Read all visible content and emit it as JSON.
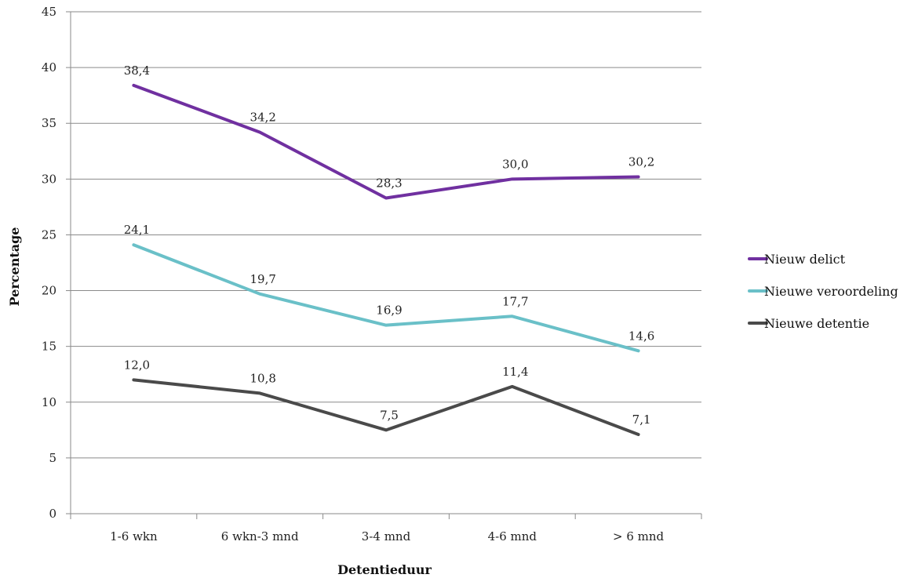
{
  "chart_data": {
    "type": "line",
    "categories": [
      "1-6 wkn",
      "6 wkn-3 mnd",
      "3-4 mnd",
      "4-6 mnd",
      "> 6 mnd"
    ],
    "series": [
      {
        "name": "Nieuw delict",
        "values": [
          38.4,
          34.2,
          28.3,
          30.0,
          30.2
        ],
        "labels": [
          "38,4",
          "34,2",
          "28,3",
          "30,0",
          "30,2"
        ],
        "color": "#7030a0"
      },
      {
        "name": "Nieuwe veroordeling",
        "values": [
          24.1,
          19.7,
          16.9,
          17.7,
          14.6
        ],
        "labels": [
          "24,1",
          "19,7",
          "16,9",
          "17,7",
          "14,6"
        ],
        "color": "#6ac0c8"
      },
      {
        "name": "Nieuwe detentie",
        "values": [
          12.0,
          10.8,
          7.5,
          11.4,
          7.1
        ],
        "labels": [
          "12,0",
          "10,8",
          "7,5",
          "11,4",
          "7,1"
        ],
        "color": "#4a4a4a"
      }
    ],
    "title": "",
    "xlabel": "Detentieduur",
    "ylabel": "Percentage",
    "ylim": [
      0,
      45
    ],
    "yticks": [
      0,
      5,
      10,
      15,
      20,
      25,
      30,
      35,
      40,
      45
    ],
    "grid": true,
    "legend_position": "right"
  }
}
